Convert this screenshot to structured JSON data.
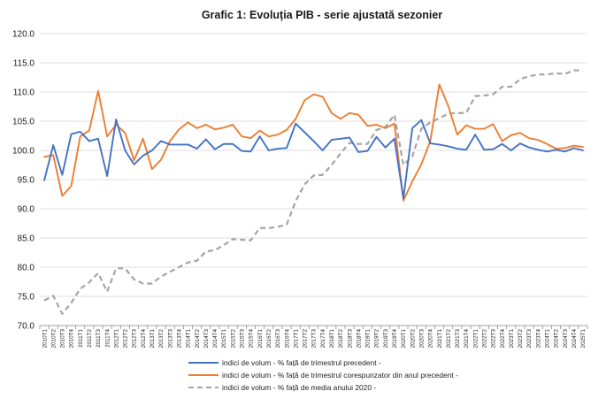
{
  "chart_data": {
    "type": "line",
    "title": "Grafic 1: Evoluția PIB - serie ajustată sezonier",
    "ylim": [
      70.0,
      120.0
    ],
    "yticks": [
      "70.0",
      "75.0",
      "80.0",
      "85.0",
      "90.0",
      "95.0",
      "100.0",
      "105.0",
      "110.0",
      "115.0",
      "120.0"
    ],
    "grid": true,
    "legend_position": "bottom",
    "categories": [
      "2010T1",
      "2010T2",
      "2010T3",
      "2010T4",
      "2011T1",
      "2011T2",
      "2011T3",
      "2011T4",
      "2012T1",
      "2012T2",
      "2012T3",
      "2012T4",
      "2013T1",
      "2013T2",
      "2013T3",
      "2013T4",
      "2014T1",
      "2014T2",
      "2014T3",
      "2014T4",
      "2015T1",
      "2015T2",
      "2015T3",
      "2015T4",
      "2016T1",
      "2016T2",
      "2016T3",
      "2016T4",
      "2017T1",
      "2017T2",
      "2017T3",
      "2017T4",
      "2018T1",
      "2018T2",
      "2018T3",
      "2018T4",
      "2019T1",
      "2019T2",
      "2019T3",
      "2019T4",
      "2020T1",
      "2020T2",
      "2020T3",
      "2020T4",
      "2021T1",
      "2021T2",
      "2021T3",
      "2021T4",
      "2022T1",
      "2022T2",
      "2022T3",
      "2022T4",
      "2023T1",
      "2023T2",
      "2023T3",
      "2023T4",
      "2024T1",
      "2024T2",
      "2024T3",
      "2024T4",
      "2025T1"
    ],
    "series": [
      {
        "name": "indici de volum - % față de trimestrul precedent -",
        "color": "#4472c4",
        "dash": "solid",
        "values": [
          94.9,
          100.9,
          95.8,
          102.8,
          103.2,
          101.6,
          102.0,
          95.6,
          105.3,
          100.0,
          97.6,
          99.1,
          100.0,
          101.6,
          101.0,
          101.0,
          101.0,
          100.3,
          101.9,
          100.2,
          101.1,
          101.1,
          99.9,
          99.8,
          102.4,
          100.0,
          100.3,
          100.4,
          104.6,
          103.1,
          101.6,
          100.0,
          101.8,
          102.0,
          102.2,
          99.7,
          99.9,
          102.3,
          100.5,
          102.0,
          91.8,
          103.8,
          105.2,
          101.2,
          101.0,
          100.7,
          100.3,
          100.1,
          102.7,
          100.1,
          100.2,
          101.1,
          100.0,
          101.2,
          100.5,
          100.1,
          99.8,
          100.1,
          99.8,
          100.4,
          100.0
        ]
      },
      {
        "name": "indici de volum - % față de trimestrul corespunzator din anul precedent -",
        "color": "#ed7d31",
        "dash": "solid",
        "values": [
          98.9,
          99.2,
          92.2,
          93.9,
          102.4,
          103.4,
          110.2,
          102.4,
          104.4,
          103.0,
          98.3,
          102.0,
          96.8,
          98.4,
          101.6,
          103.6,
          104.8,
          103.8,
          104.4,
          103.6,
          103.9,
          104.4,
          102.4,
          102.1,
          103.4,
          102.4,
          102.7,
          103.5,
          105.4,
          108.6,
          109.6,
          109.2,
          106.4,
          105.4,
          106.4,
          106.1,
          104.2,
          104.4,
          103.8,
          104.6,
          91.4,
          94.7,
          97.6,
          101.6,
          111.3,
          107.6,
          102.7,
          104.3,
          103.7,
          103.7,
          104.5,
          101.6,
          102.6,
          103.0,
          102.1,
          101.8,
          101.1,
          100.3,
          100.4,
          100.8,
          100.6
        ]
      },
      {
        "name": "indici de volum - % față de media anului 2020 -",
        "color": "#a5a5a5",
        "dash": "dashed",
        "values": [
          74.3,
          75.1,
          72.0,
          73.9,
          76.3,
          77.4,
          79.0,
          75.8,
          79.8,
          79.8,
          77.9,
          77.2,
          77.2,
          78.4,
          79.2,
          80.0,
          80.8,
          81.1,
          82.7,
          82.9,
          83.8,
          84.8,
          84.7,
          84.6,
          86.7,
          86.7,
          86.9,
          87.3,
          91.3,
          94.2,
          95.7,
          95.8,
          97.5,
          99.5,
          101.3,
          101.1,
          101.1,
          103.5,
          104.0,
          106.1,
          97.5,
          99.0,
          103.7,
          104.8,
          105.5,
          106.3,
          106.4,
          106.4,
          109.3,
          109.4,
          109.6,
          110.9,
          110.9,
          112.2,
          112.7,
          113.0,
          113.0,
          113.2,
          113.1,
          113.7,
          113.7
        ]
      }
    ]
  }
}
